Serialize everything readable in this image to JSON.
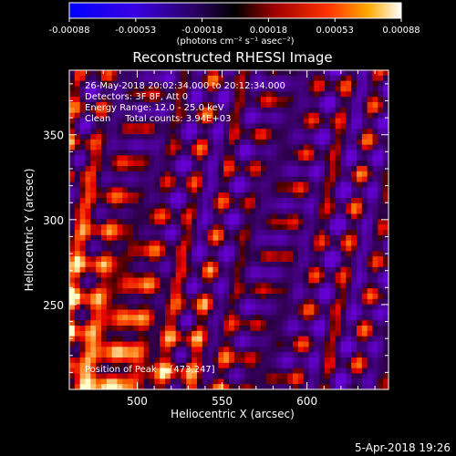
{
  "colorbar": {
    "tick_labels": [
      "-0.00088",
      "-0.00053",
      "-0.00018",
      "0.00018",
      "0.00053",
      "0.00088"
    ],
    "unit_label": "(photons cm⁻² s⁻¹ asec⁻²)",
    "range": [
      -0.00088,
      0.00088
    ]
  },
  "chart_data": {
    "type": "heatmap",
    "title": "Reconstructed RHESSI Image",
    "xlabel": "Heliocentric X (arcsec)",
    "ylabel": "Heliocentric Y (arcsec)",
    "xlim": [
      460,
      648
    ],
    "ylim": [
      200,
      388
    ],
    "x_ticks": [
      500,
      550,
      600
    ],
    "y_ticks": [
      250,
      300,
      350
    ],
    "annotations": [
      "26-May-2018 20:02:34.000 to 20:12:34.000",
      "Detectors: 3F 8F, Att 0",
      "Energy Range: 12.0 - 25.0 keV",
      "Clean     Total counts: 3.94E+03"
    ],
    "peak_label": "Position of Peak = [473,247]",
    "peak": {
      "x": 473,
      "y": 247
    }
  },
  "footer": {
    "date": "5-Apr-2018 19:26"
  }
}
